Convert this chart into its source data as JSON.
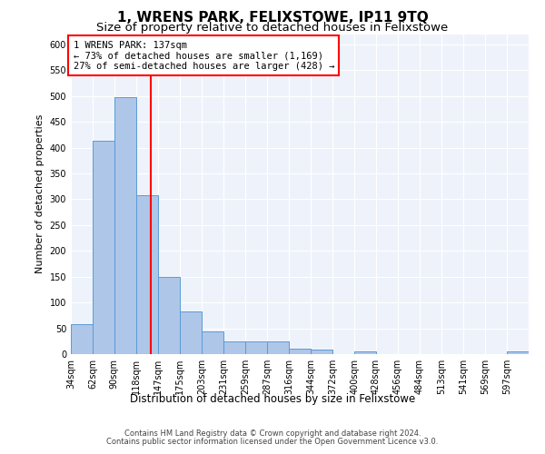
{
  "title": "1, WRENS PARK, FELIXSTOWE, IP11 9TQ",
  "subtitle": "Size of property relative to detached houses in Felixstowe",
  "xlabel": "Distribution of detached houses by size in Felixstowe",
  "ylabel": "Number of detached properties",
  "bin_labels": [
    "34sqm",
    "62sqm",
    "90sqm",
    "118sqm",
    "147sqm",
    "175sqm",
    "203sqm",
    "231sqm",
    "259sqm",
    "287sqm",
    "316sqm",
    "344sqm",
    "372sqm",
    "400sqm",
    "428sqm",
    "456sqm",
    "484sqm",
    "513sqm",
    "541sqm",
    "569sqm",
    "597sqm"
  ],
  "bar_values": [
    58,
    413,
    497,
    307,
    150,
    82,
    44,
    25,
    25,
    25,
    10,
    8,
    0,
    5,
    0,
    0,
    0,
    0,
    0,
    0,
    5
  ],
  "bin_edges": [
    34,
    62,
    90,
    118,
    147,
    175,
    203,
    231,
    259,
    287,
    316,
    344,
    372,
    400,
    428,
    456,
    484,
    513,
    541,
    569,
    597,
    625
  ],
  "bar_color": "#aec6e8",
  "bar_edge_color": "#5b9bd5",
  "red_line_x": 137,
  "annotation_line1": "1 WRENS PARK: 137sqm",
  "annotation_line2": "← 73% of detached houses are smaller (1,169)",
  "annotation_line3": "27% of semi-detached houses are larger (428) →",
  "ylim": [
    0,
    620
  ],
  "yticks": [
    0,
    50,
    100,
    150,
    200,
    250,
    300,
    350,
    400,
    450,
    500,
    550,
    600
  ],
  "background_color": "#eef3fb",
  "footer_line1": "Contains HM Land Registry data © Crown copyright and database right 2024.",
  "footer_line2": "Contains public sector information licensed under the Open Government Licence v3.0.",
  "title_fontsize": 11,
  "subtitle_fontsize": 9.5,
  "ylabel_fontsize": 8,
  "xlabel_fontsize": 8.5,
  "tick_fontsize": 7,
  "annotation_fontsize": 7.5,
  "footer_fontsize": 6
}
